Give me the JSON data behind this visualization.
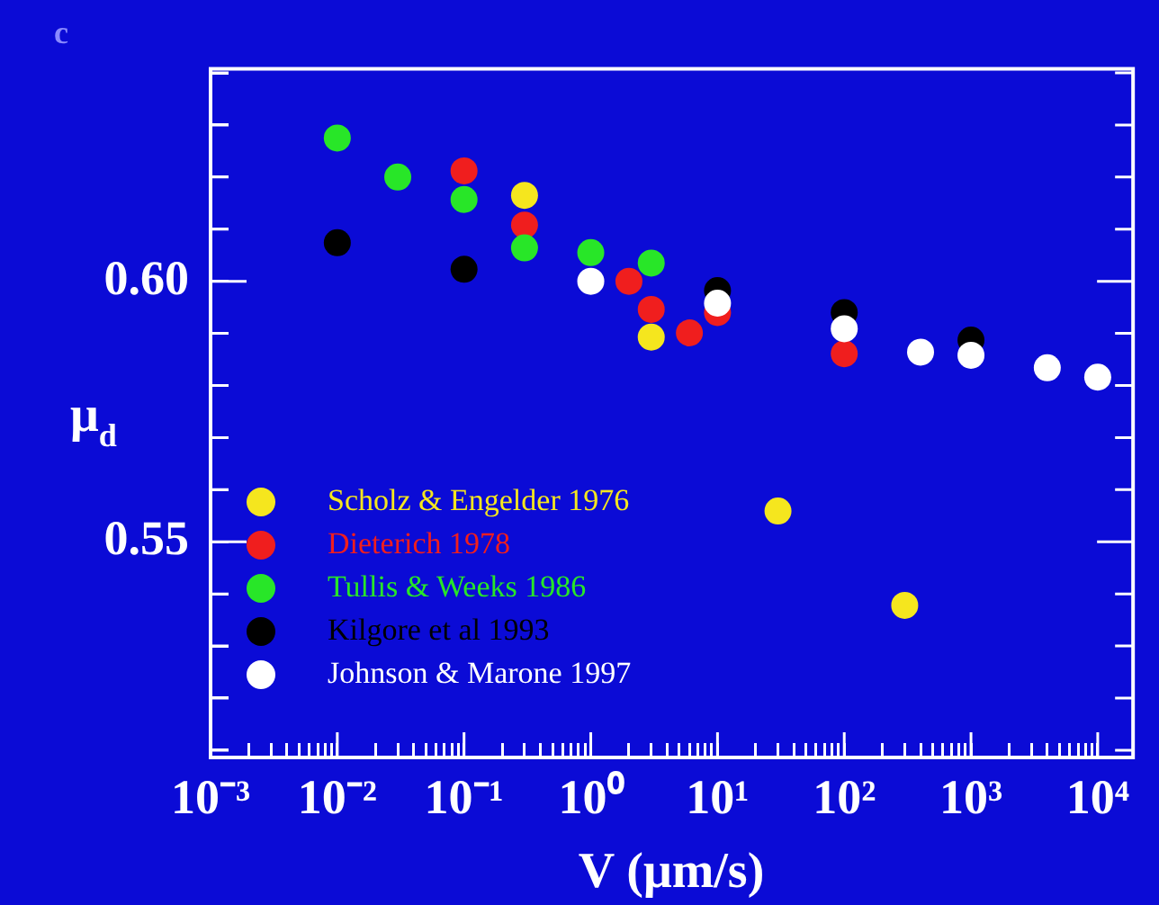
{
  "chart_data": {
    "type": "scatter",
    "xlabel": "V (μm/s)",
    "ylabel": "μ$_{d}$",
    "annotations": [
      "c"
    ],
    "log": "x",
    "xlim": [
      0.001,
      19000
    ],
    "ylim": [
      0.5086,
      0.6408
    ],
    "xticks": [
      {
        "value": 0.001,
        "label": "10⁻³"
      },
      {
        "value": 0.002,
        "label": null
      },
      {
        "value": 0.003,
        "label": null
      },
      {
        "value": 0.004,
        "label": null
      },
      {
        "value": 0.005,
        "label": null
      },
      {
        "value": 0.006,
        "label": null
      },
      {
        "value": 0.007,
        "label": null
      },
      {
        "value": 0.008,
        "label": null
      },
      {
        "value": 0.009,
        "label": null
      },
      {
        "value": 0.01,
        "label": "10⁻²"
      },
      {
        "value": 0.02,
        "label": null
      },
      {
        "value": 0.03,
        "label": null
      },
      {
        "value": 0.04,
        "label": null
      },
      {
        "value": 0.05,
        "label": null
      },
      {
        "value": 0.06,
        "label": null
      },
      {
        "value": 0.07,
        "label": null
      },
      {
        "value": 0.08,
        "label": null
      },
      {
        "value": 0.09,
        "label": null
      },
      {
        "value": 0.1,
        "label": "10⁻¹"
      },
      {
        "value": 0.2,
        "label": null
      },
      {
        "value": 0.3,
        "label": null
      },
      {
        "value": 0.4,
        "label": null
      },
      {
        "value": 0.5,
        "label": null
      },
      {
        "value": 0.6,
        "label": null
      },
      {
        "value": 0.7,
        "label": null
      },
      {
        "value": 0.8,
        "label": null
      },
      {
        "value": 0.9,
        "label": null
      },
      {
        "value": 1,
        "label": "10⁰"
      },
      {
        "value": 2,
        "label": null
      },
      {
        "value": 3,
        "label": null
      },
      {
        "value": 4,
        "label": null
      },
      {
        "value": 5,
        "label": null
      },
      {
        "value": 6,
        "label": null
      },
      {
        "value": 7,
        "label": null
      },
      {
        "value": 8,
        "label": null
      },
      {
        "value": 9,
        "label": null
      },
      {
        "value": 10,
        "label": "10¹"
      },
      {
        "value": 20,
        "label": null
      },
      {
        "value": 30,
        "label": null
      },
      {
        "value": 40,
        "label": null
      },
      {
        "value": 50,
        "label": null
      },
      {
        "value": 60,
        "label": null
      },
      {
        "value": 70,
        "label": null
      },
      {
        "value": 80,
        "label": null
      },
      {
        "value": 90,
        "label": null
      },
      {
        "value": 100,
        "label": "10²"
      },
      {
        "value": 200,
        "label": null
      },
      {
        "value": 300,
        "label": null
      },
      {
        "value": 400,
        "label": null
      },
      {
        "value": 500,
        "label": null
      },
      {
        "value": 600,
        "label": null
      },
      {
        "value": 700,
        "label": null
      },
      {
        "value": 800,
        "label": null
      },
      {
        "value": 900,
        "label": null
      },
      {
        "value": 1000,
        "label": "10³"
      },
      {
        "value": 2000,
        "label": null
      },
      {
        "value": 3000,
        "label": null
      },
      {
        "value": 4000,
        "label": null
      },
      {
        "value": 5000,
        "label": null
      },
      {
        "value": 6000,
        "label": null
      },
      {
        "value": 7000,
        "label": null
      },
      {
        "value": 8000,
        "label": null
      },
      {
        "value": 9000,
        "label": null
      },
      {
        "value": 10000,
        "label": "10⁴"
      }
    ],
    "yticks": [
      {
        "value": 0.51,
        "label": null
      },
      {
        "value": 0.52,
        "label": null
      },
      {
        "value": 0.53,
        "label": null
      },
      {
        "value": 0.54,
        "label": null
      },
      {
        "value": 0.55,
        "label": "0.55"
      },
      {
        "value": 0.56,
        "label": null
      },
      {
        "value": 0.57,
        "label": null
      },
      {
        "value": 0.58,
        "label": null
      },
      {
        "value": 0.59,
        "label": null
      },
      {
        "value": 0.6,
        "label": "0.60"
      },
      {
        "value": 0.61,
        "label": null
      },
      {
        "value": 0.62,
        "label": null
      },
      {
        "value": 0.63,
        "label": null
      },
      {
        "value": 0.64,
        "label": null
      }
    ],
    "grid": false,
    "legend": "bottom left",
    "marker": "circle",
    "series": [
      {
        "name": "Scholz & Engelder 1976",
        "color": "#f5e61e",
        "x": [
          0.3,
          3,
          30,
          300
        ],
        "values": [
          0.6165,
          0.5893,
          0.5559,
          0.5378
        ]
      },
      {
        "name": "Dieterich 1978",
        "color": "#f01e1e",
        "x": [
          0.1,
          0.3,
          2,
          3,
          6,
          10,
          100
        ],
        "values": [
          0.6212,
          0.6108,
          0.6,
          0.5946,
          0.5901,
          0.594,
          0.5861
        ]
      },
      {
        "name": "Tullis & Weeks 1986",
        "color": "#28e628",
        "x": [
          0.01,
          0.03,
          0.1,
          0.3,
          1,
          3
        ],
        "values": [
          0.6275,
          0.62,
          0.6157,
          0.6064,
          0.6055,
          0.6035
        ]
      },
      {
        "name": "Kilgore et al 1993",
        "color": "#000000",
        "x": [
          0.01,
          0.1,
          10,
          100,
          1000
        ],
        "values": [
          0.6074,
          0.6023,
          0.5982,
          0.594,
          0.5887
        ]
      },
      {
        "name": "Johnson & Marone 1997",
        "color": "#ffffff",
        "x": [
          1,
          10,
          100,
          400,
          1000,
          4000,
          10000
        ],
        "values": [
          0.6,
          0.5958,
          0.5909,
          0.5864,
          0.5858,
          0.5834,
          0.5816
        ]
      }
    ]
  }
}
